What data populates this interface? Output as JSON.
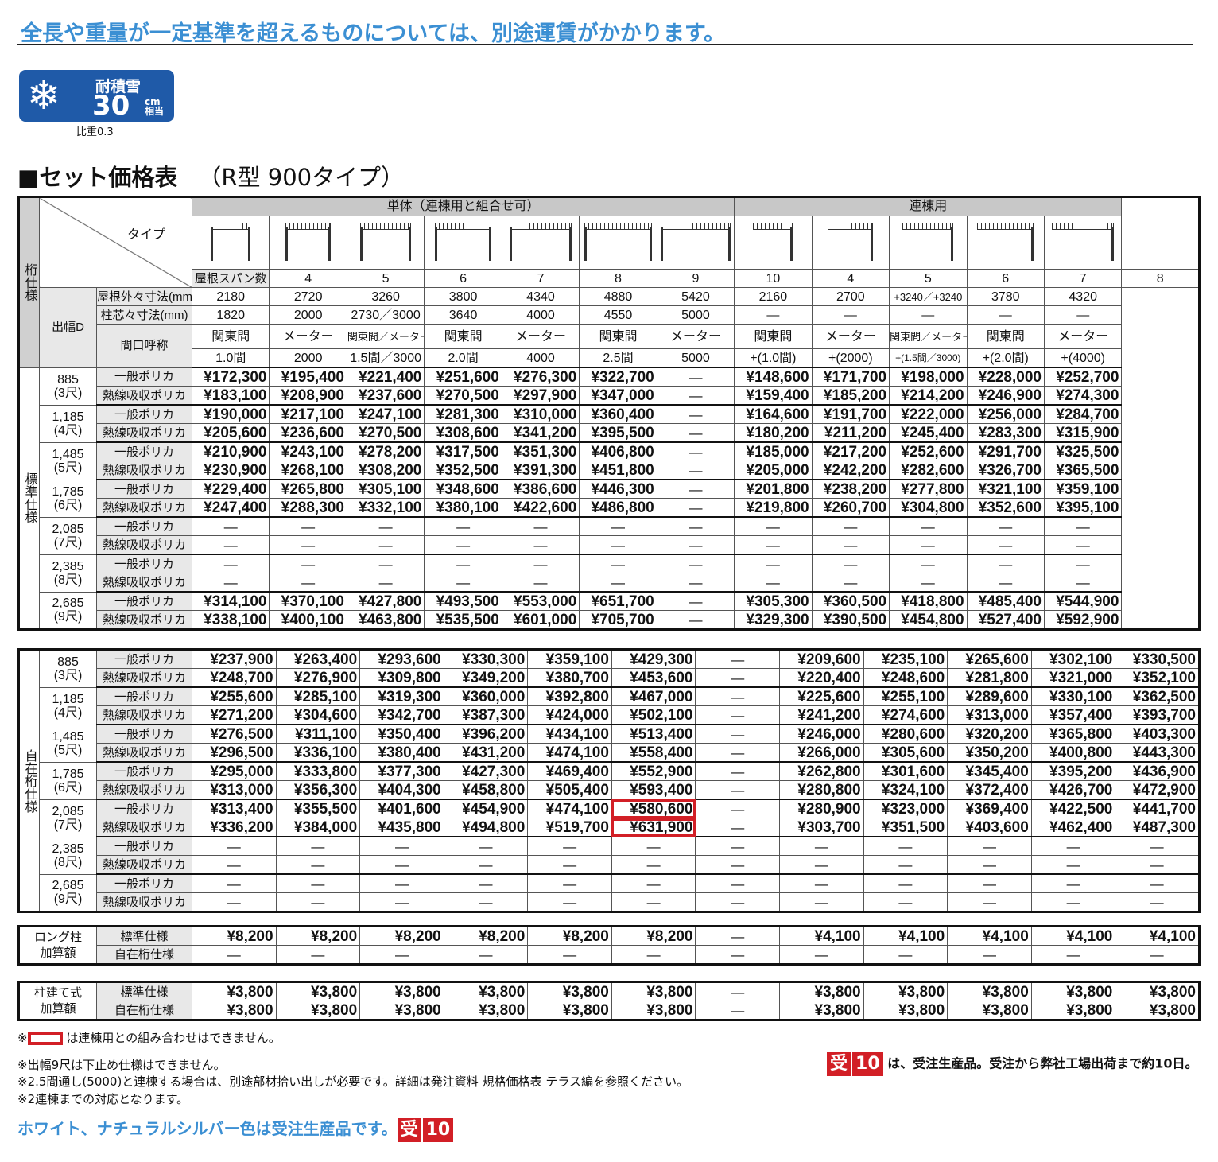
{
  "heading": "全長や重量が一定基準を超えるものについては、別途運賃がかかります。",
  "snow": {
    "label": "耐積雪",
    "value": "30",
    "unit_top": "cm",
    "unit_bottom": "相当",
    "gravity": "比重0.3"
  },
  "section": {
    "title": "■セット価格表",
    "subtitle": "（R型 900タイプ）"
  },
  "table": {
    "side_label": "桁仕様",
    "type_label": "タイプ",
    "depth_label": "出幅D",
    "group_single": "単体（連棟用と組合せ可）",
    "group_multi": "連棟用",
    "row_span": "屋根スパン数",
    "row_outer": "屋根外々寸法(mm)",
    "row_pillar": "柱芯々寸法(mm)",
    "row_name": "間口呼称",
    "spans": [
      "4",
      "5",
      "6",
      "7",
      "8",
      "9",
      "10",
      "4",
      "5",
      "6",
      "7",
      "8"
    ],
    "outer": [
      "2180",
      "2720",
      "3260",
      "3800",
      "4340",
      "4880",
      "5420",
      "2160",
      "2700",
      "+3240／+3240",
      "3780",
      "4320"
    ],
    "pillar": [
      "1820",
      "2000",
      "2730／3000",
      "3640",
      "4000",
      "4550",
      "5000",
      "—",
      "—",
      "—",
      "—",
      "—"
    ],
    "name_a": [
      "関東間",
      "メーター",
      "関東間／メーター",
      "関東間",
      "メーター",
      "関東間",
      "メーター",
      "関東間",
      "メーター",
      "関東間／メーター",
      "関東間",
      "メーター"
    ],
    "name_b": [
      "1.0間",
      "2000",
      "1.5間／3000",
      "2.0間",
      "4000",
      "2.5間",
      "5000",
      "+(1.0間)",
      "+(2000)",
      "+(1.5間／3000)",
      "+(2.0間)",
      "+(4000)"
    ]
  },
  "std": {
    "label": "標準仕様",
    "rows": [
      {
        "d": "885",
        "s": "(3尺)",
        "k": "一般ポリカ",
        "v": [
          "¥172,300",
          "¥195,400",
          "¥221,400",
          "¥251,600",
          "¥276,300",
          "¥322,700",
          "—",
          "¥148,600",
          "¥171,700",
          "¥198,000",
          "¥228,000",
          "¥252,700"
        ]
      },
      {
        "d": "",
        "s": "",
        "k": "熱線吸収ポリカ",
        "v": [
          "¥183,100",
          "¥208,900",
          "¥237,600",
          "¥270,500",
          "¥297,900",
          "¥347,000",
          "—",
          "¥159,400",
          "¥185,200",
          "¥214,200",
          "¥246,900",
          "¥274,300"
        ]
      },
      {
        "d": "1,185",
        "s": "(4尺)",
        "k": "一般ポリカ",
        "v": [
          "¥190,000",
          "¥217,100",
          "¥247,100",
          "¥281,300",
          "¥310,000",
          "¥360,400",
          "—",
          "¥164,600",
          "¥191,700",
          "¥222,000",
          "¥256,000",
          "¥284,700"
        ]
      },
      {
        "d": "",
        "s": "",
        "k": "熱線吸収ポリカ",
        "v": [
          "¥205,600",
          "¥236,600",
          "¥270,500",
          "¥308,600",
          "¥341,200",
          "¥395,500",
          "—",
          "¥180,200",
          "¥211,200",
          "¥245,400",
          "¥283,300",
          "¥315,900"
        ]
      },
      {
        "d": "1,485",
        "s": "(5尺)",
        "k": "一般ポリカ",
        "v": [
          "¥210,900",
          "¥243,100",
          "¥278,200",
          "¥317,500",
          "¥351,300",
          "¥406,800",
          "—",
          "¥185,000",
          "¥217,200",
          "¥252,600",
          "¥291,700",
          "¥325,500"
        ]
      },
      {
        "d": "",
        "s": "",
        "k": "熱線吸収ポリカ",
        "v": [
          "¥230,900",
          "¥268,100",
          "¥308,200",
          "¥352,500",
          "¥391,300",
          "¥451,800",
          "—",
          "¥205,000",
          "¥242,200",
          "¥282,600",
          "¥326,700",
          "¥365,500"
        ]
      },
      {
        "d": "1,785",
        "s": "(6尺)",
        "k": "一般ポリカ",
        "v": [
          "¥229,400",
          "¥265,800",
          "¥305,100",
          "¥348,600",
          "¥386,600",
          "¥446,300",
          "—",
          "¥201,800",
          "¥238,200",
          "¥277,800",
          "¥321,100",
          "¥359,100"
        ]
      },
      {
        "d": "",
        "s": "",
        "k": "熱線吸収ポリカ",
        "v": [
          "¥247,400",
          "¥288,300",
          "¥332,100",
          "¥380,100",
          "¥422,600",
          "¥486,800",
          "—",
          "¥219,800",
          "¥260,700",
          "¥304,800",
          "¥352,600",
          "¥395,100"
        ]
      },
      {
        "d": "2,085",
        "s": "(7尺)",
        "k": "一般ポリカ",
        "v": [
          "—",
          "—",
          "—",
          "—",
          "—",
          "—",
          "—",
          "—",
          "—",
          "—",
          "—",
          "—"
        ]
      },
      {
        "d": "",
        "s": "",
        "k": "熱線吸収ポリカ",
        "v": [
          "—",
          "—",
          "—",
          "—",
          "—",
          "—",
          "—",
          "—",
          "—",
          "—",
          "—",
          "—"
        ]
      },
      {
        "d": "2,385",
        "s": "(8尺)",
        "k": "一般ポリカ",
        "v": [
          "—",
          "—",
          "—",
          "—",
          "—",
          "—",
          "—",
          "—",
          "—",
          "—",
          "—",
          "—"
        ]
      },
      {
        "d": "",
        "s": "",
        "k": "熱線吸収ポリカ",
        "v": [
          "—",
          "—",
          "—",
          "—",
          "—",
          "—",
          "—",
          "—",
          "—",
          "—",
          "—",
          "—"
        ]
      },
      {
        "d": "2,685",
        "s": "(9尺)",
        "k": "一般ポリカ",
        "v": [
          "¥314,100",
          "¥370,100",
          "¥427,800",
          "¥493,500",
          "¥553,000",
          "¥651,700",
          "—",
          "¥305,300",
          "¥360,500",
          "¥418,800",
          "¥485,400",
          "¥544,900"
        ]
      },
      {
        "d": "",
        "s": "",
        "k": "熱線吸収ポリカ",
        "v": [
          "¥338,100",
          "¥400,100",
          "¥463,800",
          "¥535,500",
          "¥601,000",
          "¥705,700",
          "—",
          "¥329,300",
          "¥390,500",
          "¥454,800",
          "¥527,400",
          "¥592,900"
        ]
      }
    ]
  },
  "free": {
    "label": "自在桁仕様",
    "rows": [
      {
        "d": "885",
        "s": "(3尺)",
        "k": "一般ポリカ",
        "v": [
          "¥237,900",
          "¥263,400",
          "¥293,600",
          "¥330,300",
          "¥359,100",
          "¥429,300",
          "—",
          "¥209,600",
          "¥235,100",
          "¥265,600",
          "¥302,100",
          "¥330,500"
        ]
      },
      {
        "d": "",
        "s": "",
        "k": "熱線吸収ポリカ",
        "v": [
          "¥248,700",
          "¥276,900",
          "¥309,800",
          "¥349,200",
          "¥380,700",
          "¥453,600",
          "—",
          "¥220,400",
          "¥248,600",
          "¥281,800",
          "¥321,000",
          "¥352,100"
        ]
      },
      {
        "d": "1,185",
        "s": "(4尺)",
        "k": "一般ポリカ",
        "v": [
          "¥255,600",
          "¥285,100",
          "¥319,300",
          "¥360,000",
          "¥392,800",
          "¥467,000",
          "—",
          "¥225,600",
          "¥255,100",
          "¥289,600",
          "¥330,100",
          "¥362,500"
        ]
      },
      {
        "d": "",
        "s": "",
        "k": "熱線吸収ポリカ",
        "v": [
          "¥271,200",
          "¥304,600",
          "¥342,700",
          "¥387,300",
          "¥424,000",
          "¥502,100",
          "—",
          "¥241,200",
          "¥274,600",
          "¥313,000",
          "¥357,400",
          "¥393,700"
        ]
      },
      {
        "d": "1,485",
        "s": "(5尺)",
        "k": "一般ポリカ",
        "v": [
          "¥276,500",
          "¥311,100",
          "¥350,400",
          "¥396,200",
          "¥434,100",
          "¥513,400",
          "—",
          "¥246,000",
          "¥280,600",
          "¥320,200",
          "¥365,800",
          "¥403,300"
        ]
      },
      {
        "d": "",
        "s": "",
        "k": "熱線吸収ポリカ",
        "v": [
          "¥296,500",
          "¥336,100",
          "¥380,400",
          "¥431,200",
          "¥474,100",
          "¥558,400",
          "—",
          "¥266,000",
          "¥305,600",
          "¥350,200",
          "¥400,800",
          "¥443,300"
        ]
      },
      {
        "d": "1,785",
        "s": "(6尺)",
        "k": "一般ポリカ",
        "v": [
          "¥295,000",
          "¥333,800",
          "¥377,300",
          "¥427,300",
          "¥469,400",
          "¥552,900",
          "—",
          "¥262,800",
          "¥301,600",
          "¥345,400",
          "¥395,200",
          "¥436,900"
        ]
      },
      {
        "d": "",
        "s": "",
        "k": "熱線吸収ポリカ",
        "v": [
          "¥313,000",
          "¥356,300",
          "¥404,300",
          "¥458,800",
          "¥505,400",
          "¥593,400",
          "—",
          "¥280,800",
          "¥324,100",
          "¥372,400",
          "¥426,700",
          "¥472,900"
        ]
      },
      {
        "d": "2,085",
        "s": "(7尺)",
        "k": "一般ポリカ",
        "v": [
          "¥313,400",
          "¥355,500",
          "¥401,600",
          "¥454,900",
          "¥474,100",
          "¥580,600",
          "—",
          "¥280,900",
          "¥323,000",
          "¥369,400",
          "¥422,500",
          "¥441,700"
        ]
      },
      {
        "d": "",
        "s": "",
        "k": "熱線吸収ポリカ",
        "v": [
          "¥336,200",
          "¥384,000",
          "¥435,800",
          "¥494,800",
          "¥519,700",
          "¥631,900",
          "—",
          "¥303,700",
          "¥351,500",
          "¥403,600",
          "¥462,400",
          "¥487,300"
        ]
      },
      {
        "d": "2,385",
        "s": "(8尺)",
        "k": "一般ポリカ",
        "v": [
          "—",
          "—",
          "—",
          "—",
          "—",
          "—",
          "—",
          "—",
          "—",
          "—",
          "—",
          "—"
        ]
      },
      {
        "d": "",
        "s": "",
        "k": "熱線吸収ポリカ",
        "v": [
          "—",
          "—",
          "—",
          "—",
          "—",
          "—",
          "—",
          "—",
          "—",
          "—",
          "—",
          "—"
        ]
      },
      {
        "d": "2,685",
        "s": "(9尺)",
        "k": "一般ポリカ",
        "v": [
          "—",
          "—",
          "—",
          "—",
          "—",
          "—",
          "—",
          "—",
          "—",
          "—",
          "—",
          "—"
        ]
      },
      {
        "d": "",
        "s": "",
        "k": "熱線吸収ポリカ",
        "v": [
          "—",
          "—",
          "—",
          "—",
          "—",
          "—",
          "—",
          "—",
          "—",
          "—",
          "—",
          "—"
        ]
      }
    ]
  },
  "long": {
    "label": "ロング柱\n加算額",
    "rows": [
      {
        "k": "標準仕様",
        "v": [
          "¥8,200",
          "¥8,200",
          "¥8,200",
          "¥8,200",
          "¥8,200",
          "¥8,200",
          "—",
          "¥4,100",
          "¥4,100",
          "¥4,100",
          "¥4,100",
          "¥4,100"
        ]
      },
      {
        "k": "自在桁仕様",
        "v": [
          "—",
          "—",
          "—",
          "—",
          "—",
          "—",
          "—",
          "—",
          "—",
          "—",
          "—",
          "—"
        ]
      }
    ]
  },
  "post": {
    "label": "柱建て式\n加算額",
    "rows": [
      {
        "k": "標準仕様",
        "v": [
          "¥3,800",
          "¥3,800",
          "¥3,800",
          "¥3,800",
          "¥3,800",
          "¥3,800",
          "—",
          "¥3,800",
          "¥3,800",
          "¥3,800",
          "¥3,800",
          "¥3,800"
        ]
      },
      {
        "k": "自在桁仕様",
        "v": [
          "¥3,800",
          "¥3,800",
          "¥3,800",
          "¥3,800",
          "¥3,800",
          "¥3,800",
          "—",
          "¥3,800",
          "¥3,800",
          "¥3,800",
          "¥3,800",
          "¥3,800"
        ]
      }
    ]
  },
  "notes": {
    "redbox_prefix": "※",
    "redbox_text": "は連棟用との組み合わせはできません。",
    "n1": "※出幅9尺は下止め仕様はできません。",
    "n2": "※2.5間通し(5000)と連棟する場合は、別途部材拾い出しが必要です。詳細は発注資料 規格価格表 テラス編を参照ください。",
    "n3": "※2連棟までの対応となります。",
    "order_a": "受",
    "order_b": "10",
    "order_text": "は、受注生産品。受注から弊社工場出荷まで約10日。",
    "blue": "ホワイト、ナチュラルシルバー色は受注生産品です。"
  },
  "colors": {
    "accent_blue": "#3b8fd3",
    "badge_blue": "#1f5aa8",
    "red": "#d21f26"
  }
}
